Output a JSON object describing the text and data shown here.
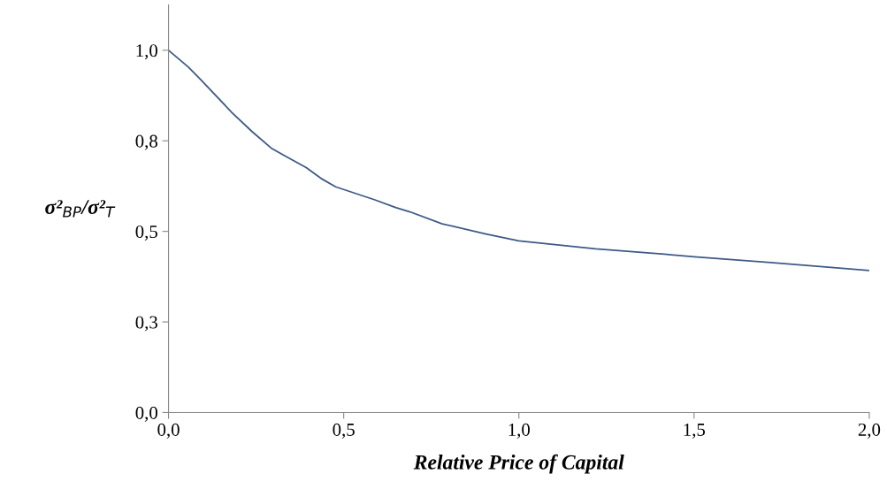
{
  "chart_data": {
    "type": "line",
    "xlabel": "Relative Price of Capital",
    "ylabel": "σ²$_{BP}$/σ²$_{T}$",
    "x": [
      0,
      0.056,
      0.089,
      0.181,
      0.239,
      0.293,
      0.331,
      0.393,
      0.439,
      0.477,
      0.589,
      0.648,
      0.689,
      0.781,
      0.906,
      1.0,
      1.219,
      1.415,
      1.5,
      1.719,
      2.0
    ],
    "series": [
      {
        "color": "#3d5a87",
        "values": [
          1.0,
          0.954,
          0.922,
          0.828,
          0.775,
          0.73,
          0.709,
          0.676,
          0.644,
          0.623,
          0.587,
          0.566,
          0.554,
          0.521,
          0.493,
          0.474,
          0.452,
          0.437,
          0.43,
          0.414,
          0.392
        ]
      }
    ],
    "xlim": [
      0,
      2.0
    ],
    "ylim": [
      0,
      1.125
    ],
    "xticks": [
      {
        "value": 0,
        "label": "0,0"
      },
      {
        "value": 0.5,
        "label": "0,5"
      },
      {
        "value": 1.0,
        "label": "1,0"
      },
      {
        "value": 1.5,
        "label": "1,5"
      },
      {
        "value": 2.0,
        "label": "2,0"
      }
    ],
    "yticks": [
      {
        "value": 0,
        "label": "0,0"
      },
      {
        "value": 0.25,
        "label": "0,3"
      },
      {
        "value": 0.5,
        "label": "0,5"
      },
      {
        "value": 0.75,
        "label": "0,8"
      },
      {
        "value": 1.0,
        "label": "1,0"
      }
    ],
    "grid": false,
    "marker": "none",
    "line_style": "solid"
  }
}
